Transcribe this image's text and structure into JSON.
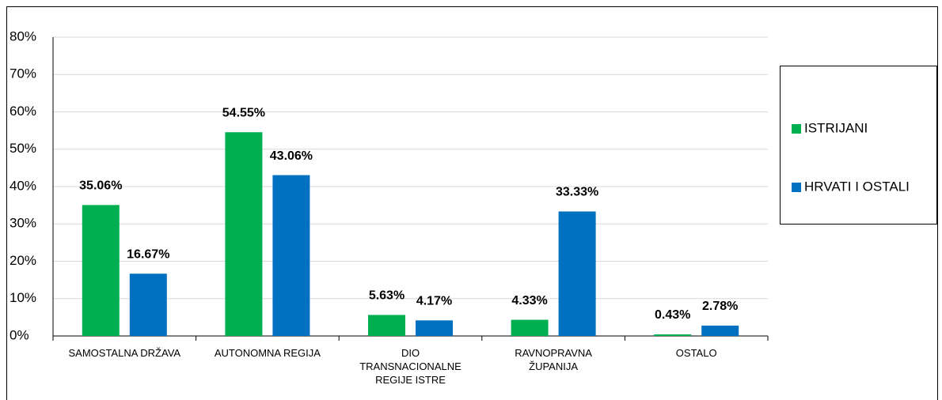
{
  "chart_data": {
    "type": "bar",
    "categories": [
      "SAMOSTALNA DRŽAVA",
      "AUTONOMNA REGIJA",
      "DIO\nTRANSNACIONALNE\nREGIJE ISTRE",
      "RAVNOPRAVNA\nŽUPANIJA",
      "OSTALO"
    ],
    "series": [
      {
        "name": "ISTRIJANI",
        "color": "#00b050",
        "values": [
          35.06,
          54.55,
          5.63,
          4.33,
          0.43
        ],
        "value_labels": [
          "35.06%",
          "54.55%",
          "5.63%",
          "4.33%",
          "0.43%"
        ]
      },
      {
        "name": "HRVATI I OSTALI",
        "color": "#0070c0",
        "values": [
          16.67,
          43.06,
          4.17,
          33.33,
          2.78
        ],
        "value_labels": [
          "16.67%",
          "43.06%",
          "4.17%",
          "33.33%",
          "2.78%"
        ]
      }
    ],
    "ylim": [
      0,
      80
    ],
    "yticks": [
      {
        "value": 0,
        "label": "0%"
      },
      {
        "value": 10,
        "label": "10%"
      },
      {
        "value": 20,
        "label": "20%"
      },
      {
        "value": 30,
        "label": "30%"
      },
      {
        "value": 40,
        "label": "40%"
      },
      {
        "value": 50,
        "label": "50%"
      },
      {
        "value": 60,
        "label": "60%"
      },
      {
        "value": 70,
        "label": "70%"
      },
      {
        "value": 80,
        "label": "80%"
      }
    ],
    "grid": true,
    "legend": "right"
  }
}
